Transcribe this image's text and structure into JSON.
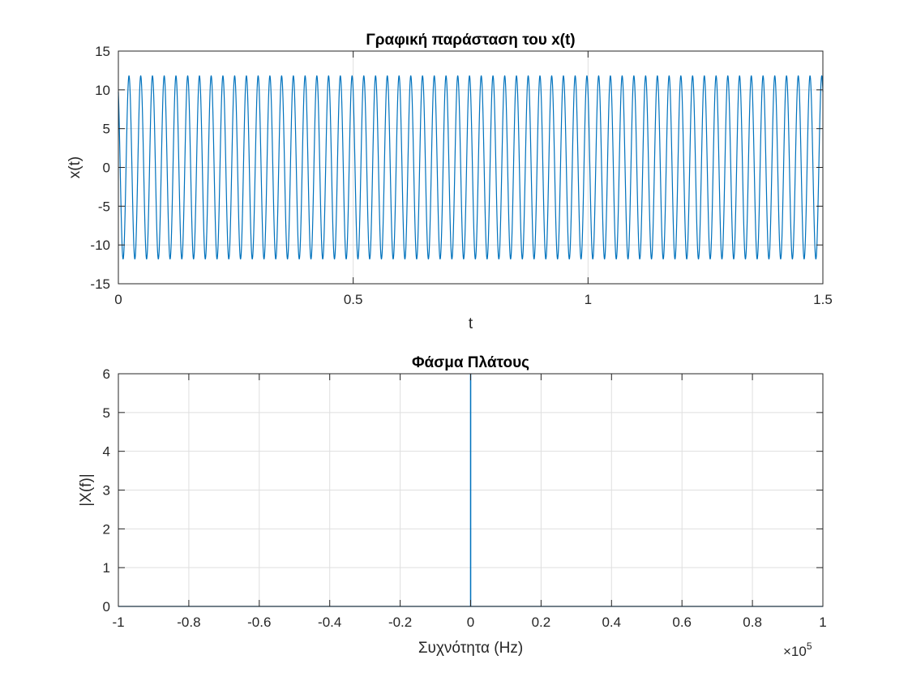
{
  "chart_data": [
    {
      "type": "line",
      "title": "Γραφική παράσταση του x(t)",
      "xlabel": "t",
      "ylabel": "x(t)",
      "xlim": [
        0,
        1.5
      ],
      "ylim": [
        -15,
        15
      ],
      "xticks": [
        0,
        0.5,
        1,
        1.5
      ],
      "xtick_labels": [
        "0",
        "0.5",
        "1",
        "1.5"
      ],
      "yticks": [
        -15,
        -10,
        -5,
        0,
        5,
        10,
        15
      ],
      "ytick_labels": [
        "-15",
        "-10",
        "-5",
        "0",
        "5",
        "10",
        "15"
      ],
      "grid": true,
      "series": [
        {
          "color": "#0072bd",
          "function": "cosine",
          "amplitude": 11.8,
          "frequency": 40,
          "phase": 0.6
        }
      ]
    },
    {
      "type": "line",
      "title": "Φάσμα Πλάτους",
      "xlabel": "Συχνότητα (Hz)",
      "ylabel": "|X(f)|",
      "xlim": [
        -100000,
        100000
      ],
      "ylim": [
        0,
        6
      ],
      "xticks": [
        -100000,
        -80000,
        -60000,
        -40000,
        -20000,
        0,
        20000,
        40000,
        60000,
        80000,
        100000
      ],
      "xtick_labels": [
        "-1",
        "-0.8",
        "-0.6",
        "-0.4",
        "-0.2",
        "0",
        "0.2",
        "0.4",
        "0.6",
        "0.8",
        "1"
      ],
      "x_exponent": {
        "base": "×10",
        "power": "5"
      },
      "yticks": [
        0,
        1,
        2,
        3,
        4,
        5,
        6
      ],
      "ytick_labels": [
        "0",
        "1",
        "2",
        "3",
        "4",
        "5",
        "6"
      ],
      "grid": true,
      "series": [
        {
          "color": "#0072bd",
          "x": [
            -100000,
            -40,
            -40,
            -40,
            40,
            40,
            40,
            100000
          ],
          "y": [
            0,
            0,
            6,
            0,
            0,
            6,
            0,
            0
          ]
        }
      ]
    }
  ]
}
